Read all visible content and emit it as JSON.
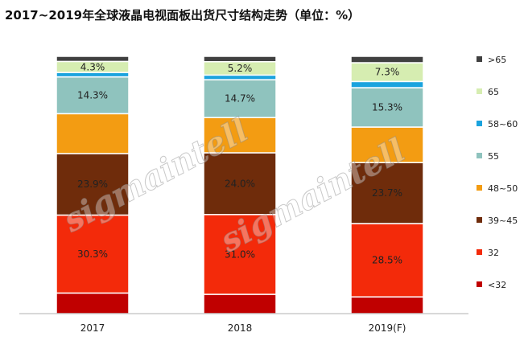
{
  "page": {
    "title": "2017~2019年全球液晶电视面板出货尺寸结构走势（单位：%）"
  },
  "watermark": "sigmaintell",
  "chart_data": {
    "type": "bar",
    "stacked": true,
    "title": "2017~2019年全球液晶电视面板出货尺寸结构走势（单位：%）",
    "categories": [
      "2017",
      "2018",
      "2019(F)"
    ],
    "ylim": [
      0,
      100
    ],
    "grid": false,
    "legend_position": "right",
    "series": [
      {
        "name": "<32",
        "color": "#c00000",
        "values": [
          8.0,
          7.5,
          6.5
        ],
        "labels": [
          "",
          "",
          ""
        ]
      },
      {
        "name": "32",
        "color": "#f32a0a",
        "values": [
          30.3,
          31.0,
          28.5
        ],
        "labels": [
          "30.3%",
          "31.0%",
          "28.5%"
        ]
      },
      {
        "name": "39~45",
        "color": "#6f2c0b",
        "values": [
          23.9,
          24.0,
          23.7
        ],
        "labels": [
          "23.9%",
          "24.0%",
          "23.7%"
        ]
      },
      {
        "name": "48~50",
        "color": "#f39c12",
        "values": [
          15.5,
          13.7,
          13.8
        ],
        "labels": [
          "",
          "",
          ""
        ]
      },
      {
        "name": "55",
        "color": "#8fc3be",
        "values": [
          14.3,
          14.7,
          15.3
        ],
        "labels": [
          "14.3%",
          "14.7%",
          "15.3%"
        ]
      },
      {
        "name": "58~60",
        "color": "#1aa3de",
        "values": [
          1.7,
          1.8,
          2.4
        ],
        "labels": [
          "",
          "",
          ""
        ]
      },
      {
        "name": "65",
        "color": "#d6edb1",
        "values": [
          4.3,
          5.2,
          7.3
        ],
        "labels": [
          "4.3%",
          "5.2%",
          "7.3%"
        ]
      },
      {
        "name": ">65",
        "color": "#404040",
        "values": [
          2.0,
          2.1,
          2.5
        ],
        "labels": [
          "",
          "",
          ""
        ]
      }
    ]
  }
}
